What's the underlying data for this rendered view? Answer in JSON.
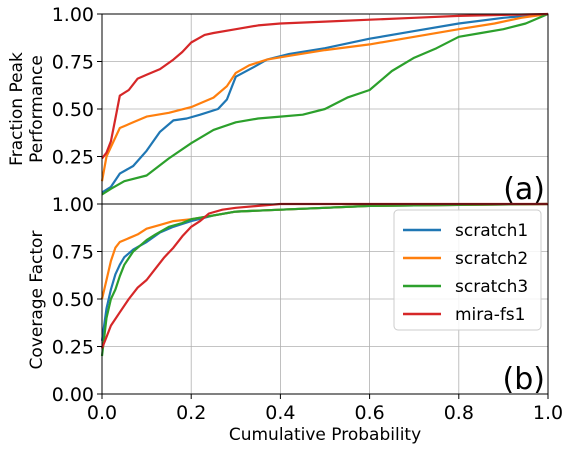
{
  "xlabel": "Cumulative Probability",
  "colors": {
    "scratch1": "#1f77b4",
    "scratch2": "#ff7f0e",
    "scratch3": "#2ca02c",
    "mira-fs1": "#d62728"
  },
  "chart_data": [
    {
      "type": "line",
      "panel_label": "(a)",
      "ylabel_line1": "Fraction Peak",
      "ylabel_line2": "Performance",
      "xlim": [
        0,
        1
      ],
      "ylim": [
        0,
        1
      ],
      "x_ticks": [],
      "y_ticks": [
        "0.25",
        "0.50",
        "0.75",
        "1.00"
      ],
      "y_tick_values": [
        0.25,
        0.5,
        0.75,
        1.0
      ],
      "grid": true,
      "series": [
        {
          "name": "scratch1",
          "color": "#1f77b4",
          "points": [
            [
              0,
              0.06
            ],
            [
              0.02,
              0.09
            ],
            [
              0.04,
              0.16
            ],
            [
              0.07,
              0.2
            ],
            [
              0.1,
              0.28
            ],
            [
              0.13,
              0.38
            ],
            [
              0.16,
              0.44
            ],
            [
              0.19,
              0.45
            ],
            [
              0.22,
              0.47
            ],
            [
              0.26,
              0.5
            ],
            [
              0.28,
              0.55
            ],
            [
              0.3,
              0.67
            ],
            [
              0.34,
              0.72
            ],
            [
              0.37,
              0.76
            ],
            [
              0.42,
              0.79
            ],
            [
              0.5,
              0.82
            ],
            [
              0.6,
              0.87
            ],
            [
              0.7,
              0.91
            ],
            [
              0.8,
              0.95
            ],
            [
              0.9,
              0.98
            ],
            [
              1.0,
              1.0
            ]
          ]
        },
        {
          "name": "scratch2",
          "color": "#ff7f0e",
          "points": [
            [
              0,
              0.12
            ],
            [
              0.01,
              0.25
            ],
            [
              0.02,
              0.3
            ],
            [
              0.04,
              0.4
            ],
            [
              0.07,
              0.43
            ],
            [
              0.1,
              0.46
            ],
            [
              0.15,
              0.48
            ],
            [
              0.2,
              0.51
            ],
            [
              0.25,
              0.56
            ],
            [
              0.28,
              0.62
            ],
            [
              0.3,
              0.69
            ],
            [
              0.33,
              0.73
            ],
            [
              0.37,
              0.76
            ],
            [
              0.42,
              0.78
            ],
            [
              0.5,
              0.81
            ],
            [
              0.6,
              0.84
            ],
            [
              0.7,
              0.88
            ],
            [
              0.8,
              0.92
            ],
            [
              0.88,
              0.95
            ],
            [
              0.94,
              0.98
            ],
            [
              1.0,
              1.0
            ]
          ]
        },
        {
          "name": "scratch3",
          "color": "#2ca02c",
          "points": [
            [
              0,
              0.05
            ],
            [
              0.02,
              0.08
            ],
            [
              0.05,
              0.12
            ],
            [
              0.1,
              0.15
            ],
            [
              0.15,
              0.24
            ],
            [
              0.2,
              0.32
            ],
            [
              0.25,
              0.39
            ],
            [
              0.3,
              0.43
            ],
            [
              0.35,
              0.45
            ],
            [
              0.4,
              0.46
            ],
            [
              0.45,
              0.47
            ],
            [
              0.5,
              0.5
            ],
            [
              0.55,
              0.56
            ],
            [
              0.6,
              0.6
            ],
            [
              0.65,
              0.7
            ],
            [
              0.7,
              0.77
            ],
            [
              0.75,
              0.82
            ],
            [
              0.8,
              0.88
            ],
            [
              0.85,
              0.9
            ],
            [
              0.9,
              0.92
            ],
            [
              0.95,
              0.95
            ],
            [
              1.0,
              1.0
            ]
          ]
        },
        {
          "name": "mira-fs1",
          "color": "#d62728",
          "points": [
            [
              0,
              0.24
            ],
            [
              0.01,
              0.27
            ],
            [
              0.02,
              0.33
            ],
            [
              0.03,
              0.45
            ],
            [
              0.04,
              0.57
            ],
            [
              0.06,
              0.6
            ],
            [
              0.08,
              0.66
            ],
            [
              0.1,
              0.68
            ],
            [
              0.13,
              0.71
            ],
            [
              0.16,
              0.76
            ],
            [
              0.18,
              0.8
            ],
            [
              0.2,
              0.85
            ],
            [
              0.23,
              0.89
            ],
            [
              0.25,
              0.9
            ],
            [
              0.3,
              0.92
            ],
            [
              0.35,
              0.94
            ],
            [
              0.4,
              0.95
            ],
            [
              0.5,
              0.96
            ],
            [
              0.6,
              0.97
            ],
            [
              0.7,
              0.98
            ],
            [
              0.8,
              0.99
            ],
            [
              0.9,
              0.995
            ],
            [
              1.0,
              1.0
            ]
          ]
        }
      ]
    },
    {
      "type": "line",
      "panel_label": "(b)",
      "ylabel": "Coverage Factor",
      "xlim": [
        0,
        1
      ],
      "ylim": [
        0,
        1
      ],
      "x_ticks": [
        "0.0",
        "0.2",
        "0.4",
        "0.6",
        "0.8",
        "1.0"
      ],
      "x_tick_values": [
        0,
        0.2,
        0.4,
        0.6,
        0.8,
        1.0
      ],
      "y_ticks": [
        "0.00",
        "0.25",
        "0.50",
        "0.75",
        "1.00"
      ],
      "y_tick_values": [
        0,
        0.25,
        0.5,
        0.75,
        1.0
      ],
      "grid": true,
      "legend": "top-right",
      "series": [
        {
          "name": "scratch1",
          "color": "#1f77b4",
          "points": [
            [
              0,
              0.28
            ],
            [
              0.01,
              0.45
            ],
            [
              0.02,
              0.55
            ],
            [
              0.03,
              0.63
            ],
            [
              0.04,
              0.68
            ],
            [
              0.05,
              0.72
            ],
            [
              0.07,
              0.76
            ],
            [
              0.1,
              0.8
            ],
            [
              0.13,
              0.85
            ],
            [
              0.16,
              0.88
            ],
            [
              0.2,
              0.91
            ],
            [
              0.25,
              0.94
            ],
            [
              0.3,
              0.96
            ],
            [
              0.4,
              0.97
            ],
            [
              0.5,
              0.98
            ],
            [
              0.6,
              0.99
            ],
            [
              0.8,
              0.995
            ],
            [
              1.0,
              1.0
            ]
          ]
        },
        {
          "name": "scratch2",
          "color": "#ff7f0e",
          "points": [
            [
              0,
              0.5
            ],
            [
              0.01,
              0.6
            ],
            [
              0.02,
              0.7
            ],
            [
              0.03,
              0.77
            ],
            [
              0.04,
              0.8
            ],
            [
              0.06,
              0.82
            ],
            [
              0.08,
              0.84
            ],
            [
              0.1,
              0.87
            ],
            [
              0.13,
              0.89
            ],
            [
              0.16,
              0.91
            ],
            [
              0.2,
              0.92
            ],
            [
              0.25,
              0.94
            ],
            [
              0.3,
              0.96
            ],
            [
              0.4,
              0.97
            ],
            [
              0.5,
              0.98
            ],
            [
              0.6,
              0.99
            ],
            [
              0.8,
              0.995
            ],
            [
              1.0,
              1.0
            ]
          ]
        },
        {
          "name": "scratch3",
          "color": "#2ca02c",
          "points": [
            [
              0,
              0.2
            ],
            [
              0.01,
              0.4
            ],
            [
              0.02,
              0.5
            ],
            [
              0.03,
              0.55
            ],
            [
              0.04,
              0.62
            ],
            [
              0.05,
              0.68
            ],
            [
              0.07,
              0.75
            ],
            [
              0.09,
              0.79
            ],
            [
              0.1,
              0.81
            ],
            [
              0.12,
              0.84
            ],
            [
              0.15,
              0.88
            ],
            [
              0.18,
              0.9
            ],
            [
              0.2,
              0.92
            ],
            [
              0.25,
              0.94
            ],
            [
              0.3,
              0.96
            ],
            [
              0.4,
              0.97
            ],
            [
              0.5,
              0.98
            ],
            [
              0.6,
              0.99
            ],
            [
              0.8,
              0.995
            ],
            [
              1.0,
              1.0
            ]
          ]
        },
        {
          "name": "mira-fs1",
          "color": "#d62728",
          "points": [
            [
              0,
              0.24
            ],
            [
              0.01,
              0.3
            ],
            [
              0.02,
              0.36
            ],
            [
              0.04,
              0.43
            ],
            [
              0.06,
              0.5
            ],
            [
              0.08,
              0.56
            ],
            [
              0.1,
              0.6
            ],
            [
              0.12,
              0.66
            ],
            [
              0.14,
              0.72
            ],
            [
              0.16,
              0.77
            ],
            [
              0.18,
              0.83
            ],
            [
              0.2,
              0.88
            ],
            [
              0.22,
              0.91
            ],
            [
              0.24,
              0.95
            ],
            [
              0.27,
              0.97
            ],
            [
              0.3,
              0.98
            ],
            [
              0.35,
              0.99
            ],
            [
              0.4,
              1.0
            ],
            [
              1.0,
              1.0
            ]
          ]
        }
      ]
    }
  ]
}
